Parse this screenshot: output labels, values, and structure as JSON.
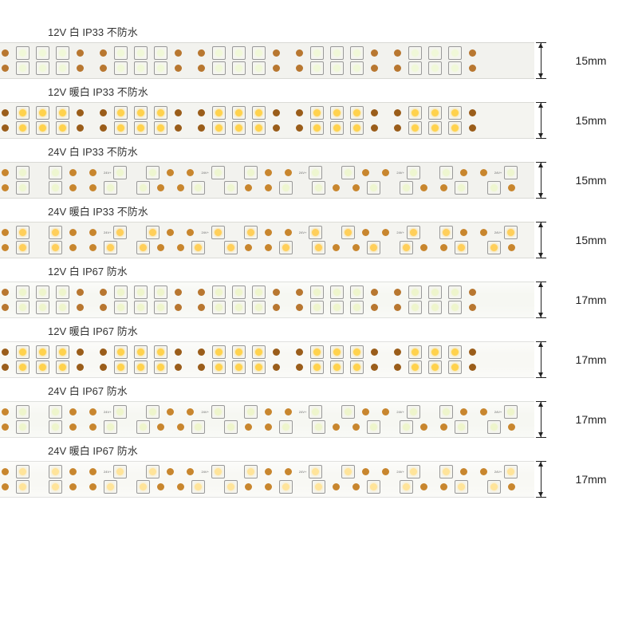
{
  "colors": {
    "pcb_white": "#f2f2ee",
    "pcb_white_glossy": "#f7f8f5",
    "led_white": "#f7fbe0",
    "led_warm": "#ffd966",
    "led_warm_pale": "#ffe8a0",
    "pad_copper": "#c8862e",
    "pad_dark": "#8a5a1a",
    "trace": "#c87828",
    "text": "#333333"
  },
  "strips": [
    {
      "label": "12V  白 IP33 不防水",
      "dimension": "15mm",
      "pcb_bg": "#f2f2ee",
      "led_color": "#f0f8d8",
      "pad_color": "#b87730",
      "cluster_pattern": "dense",
      "segments": 5,
      "leds_per_segment": 3,
      "glossy": false
    },
    {
      "label": "12V  暖白 IP33 不防水",
      "dimension": "15mm",
      "pcb_bg": "#f4f4f0",
      "led_color": "#ffd24d",
      "pad_color": "#9a5d1a",
      "cluster_pattern": "dense",
      "segments": 5,
      "leds_per_segment": 3,
      "glossy": false
    },
    {
      "label": "24V  白 IP33 不防水",
      "dimension": "15mm",
      "pcb_bg": "#f2f2ee",
      "led_color": "#eef6d0",
      "pad_color": "#c8862e",
      "cluster_pattern": "sparse",
      "segments": 6,
      "leds_per_segment": 2,
      "markings": "24V+",
      "glossy": false
    },
    {
      "label": "24V  暖白 IP33 不防水",
      "dimension": "15mm",
      "pcb_bg": "#f4f4f0",
      "led_color": "#ffcf5a",
      "pad_color": "#c8862e",
      "cluster_pattern": "sparse",
      "segments": 6,
      "leds_per_segment": 2,
      "markings": "24V+",
      "glossy": false
    },
    {
      "label": "12V  白 IP67  防水",
      "dimension": "17mm",
      "pcb_bg": "#f6f7f2",
      "led_color": "#eef5cc",
      "pad_color": "#b87730",
      "cluster_pattern": "dense",
      "segments": 5,
      "leds_per_segment": 3,
      "glossy": true
    },
    {
      "label": "12V  暖白 IP67 防水",
      "dimension": "17mm",
      "pcb_bg": "#f8f8f4",
      "led_color": "#ffd24d",
      "pad_color": "#9a5d1a",
      "cluster_pattern": "dense",
      "segments": 5,
      "leds_per_segment": 3,
      "glossy": true
    },
    {
      "label": "24V  白 IP67  防水",
      "dimension": "17mm",
      "pcb_bg": "#f6f7f2",
      "led_color": "#eef5cc",
      "pad_color": "#c8862e",
      "cluster_pattern": "sparse",
      "segments": 6,
      "leds_per_segment": 2,
      "markings": "24V+",
      "glossy": true
    },
    {
      "label": "24V  暖白 IP67  防水",
      "dimension": "17mm",
      "pcb_bg": "#f8f8f4",
      "led_color": "#ffe49a",
      "pad_color": "#c8862e",
      "cluster_pattern": "sparse",
      "segments": 6,
      "leds_per_segment": 2,
      "markings": "24V+",
      "glossy": true
    }
  ]
}
